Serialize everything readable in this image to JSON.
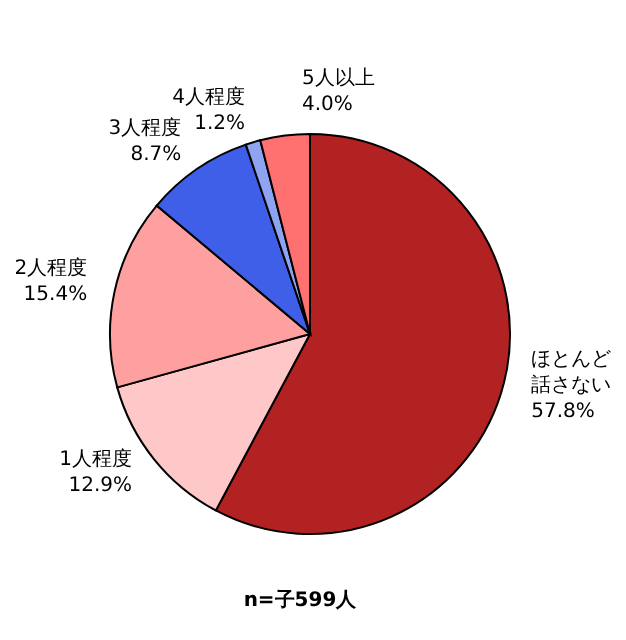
{
  "chart_data": {
    "type": "pie",
    "categories": [
      "ほとんど話さない",
      "1人程度",
      "2人程度",
      "3人程度",
      "4人程度",
      "5人以上"
    ],
    "values": [
      57.8,
      12.9,
      15.4,
      8.7,
      1.2,
      4.0
    ],
    "colors": [
      "#b22222",
      "#ffc8c8",
      "#ffa0a0",
      "#3f5fe8",
      "#8fa4f0",
      "#ff7070"
    ],
    "value_labels": [
      "57.8%",
      "12.9%",
      "15.4%",
      "8.7%",
      "1.2%",
      "4.0%"
    ],
    "annotations": [
      "n=子599人"
    ]
  }
}
